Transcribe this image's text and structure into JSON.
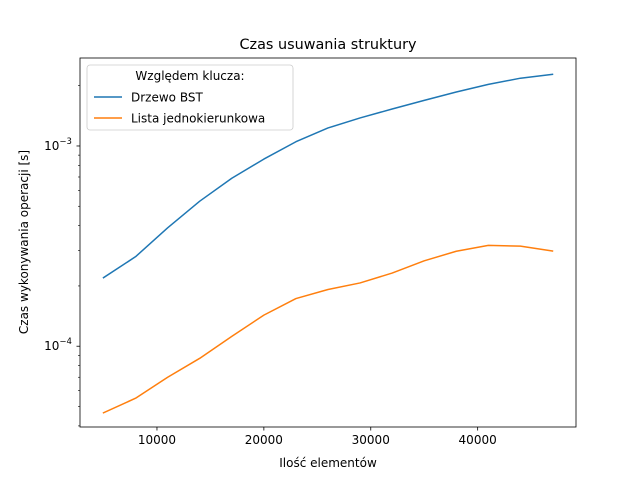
{
  "chart_data": {
    "type": "line",
    "title": "Czas usuwania struktury",
    "xlabel": "Ilość elementów",
    "ylabel": "Czas wykonywania operacji [s]",
    "xlim": [
      2800,
      49200
    ],
    "ylim": [
      3.95e-05,
      0.00275
    ],
    "yscale": "log",
    "x_ticks": [
      10000,
      20000,
      30000,
      40000
    ],
    "x_tick_labels": [
      "10000",
      "20000",
      "30000",
      "40000"
    ],
    "y_major_ticks": [
      0.0001,
      0.001
    ],
    "y_tick_labels": [
      {
        "base": "10",
        "exp": "−4"
      },
      {
        "base": "10",
        "exp": "−3"
      }
    ],
    "y_minor_ticks": [
      4e-05,
      5e-05,
      6e-05,
      7e-05,
      8e-05,
      9e-05,
      0.0002,
      0.0003,
      0.0004,
      0.0005,
      0.0006,
      0.0007,
      0.0008,
      0.0009,
      0.002
    ],
    "grid": false,
    "legend": {
      "title": "Względem klucza:",
      "position": "top-left"
    },
    "series": [
      {
        "name": "Drzewo BST",
        "color": "#1f77b4",
        "x": [
          5000,
          8000,
          11000,
          14000,
          17000,
          20000,
          23000,
          26000,
          29000,
          32000,
          35000,
          38000,
          41000,
          44000,
          47000
        ],
        "y": [
          0.00022,
          0.00028,
          0.00039,
          0.00053,
          0.00069,
          0.00086,
          0.00105,
          0.00123,
          0.00138,
          0.00153,
          0.00169,
          0.00186,
          0.00203,
          0.00218,
          0.00228
        ]
      },
      {
        "name": "Lista jednokierunkowa",
        "color": "#ff7f0e",
        "x": [
          5000,
          8000,
          11000,
          14000,
          17000,
          20000,
          23000,
          26000,
          29000,
          32000,
          35000,
          38000,
          41000,
          44000,
          47000
        ],
        "y": [
          4.65e-05,
          5.5e-05,
          7e-05,
          8.7e-05,
          0.000112,
          0.000143,
          0.000173,
          0.000192,
          0.000207,
          0.000232,
          0.000267,
          0.000298,
          0.000319,
          0.000316,
          0.000299
        ]
      }
    ]
  }
}
